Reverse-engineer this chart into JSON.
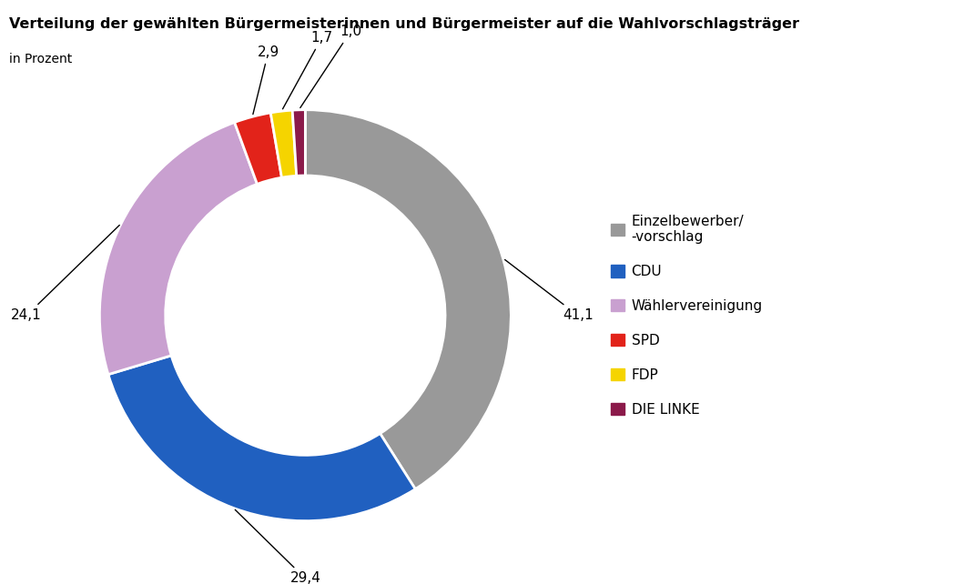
{
  "title": "Verteilung der gewählten Bürgermeisterinnen und Bürgermeister auf die Wahlvorschlagsträger",
  "subtitle": "in Prozent",
  "values": [
    41.1,
    29.4,
    24.1,
    2.9,
    1.7,
    1.0
  ],
  "display_values": [
    "41,1",
    "29,4",
    "24,1",
    "2,9",
    "1,7",
    "1,0"
  ],
  "colors": [
    "#999999",
    "#2060c0",
    "#c9a0d0",
    "#e2231a",
    "#f5d400",
    "#8b1a4a"
  ],
  "legend_labels": [
    "Einzelbewerber/\n-vorschlag",
    "CDU",
    "Wählervereinigung",
    "SPD",
    "FDP",
    "DIE LINKE"
  ],
  "legend_colors": [
    "#999999",
    "#2060c0",
    "#c9a0d0",
    "#e2231a",
    "#f5d400",
    "#8b1a4a"
  ],
  "background_color": "#ffffff",
  "donut_width": 0.32,
  "start_angle": 90,
  "title_fontsize": 11.5,
  "subtitle_fontsize": 10,
  "label_fontsize": 11,
  "legend_fontsize": 11
}
